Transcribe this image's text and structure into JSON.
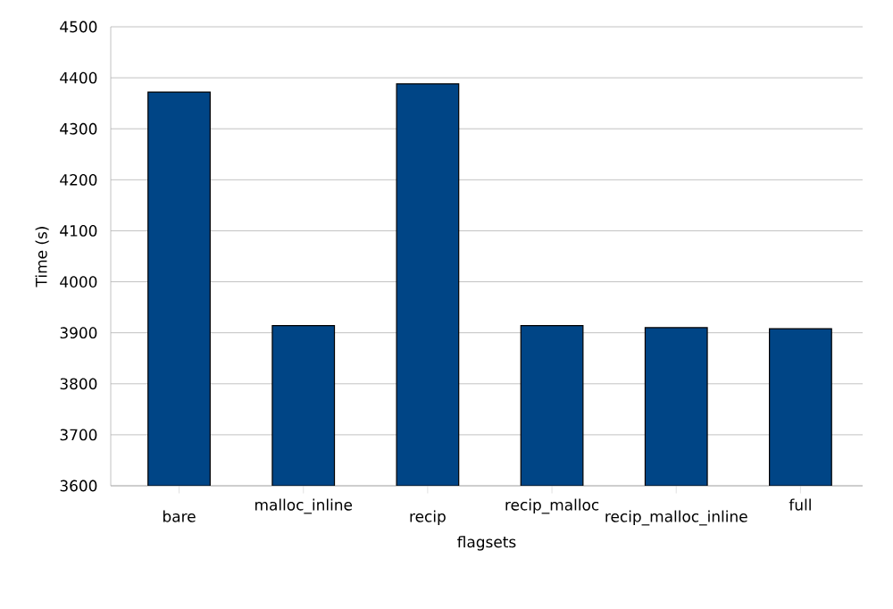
{
  "chart_data": {
    "type": "bar",
    "xlabel": "flagsets",
    "ylabel": "Time (s)",
    "categories": [
      "bare",
      "malloc_inline",
      "recip",
      "recip_malloc",
      "recip_malloc_inline",
      "full"
    ],
    "values": [
      4372,
      3914,
      4388,
      3914,
      3910,
      3908
    ],
    "color": "#004586",
    "ylim": [
      3600,
      4500
    ],
    "yticks": [
      3600,
      3700,
      3800,
      3900,
      4000,
      4100,
      4200,
      4300,
      4400,
      4500
    ],
    "grid": "y"
  }
}
